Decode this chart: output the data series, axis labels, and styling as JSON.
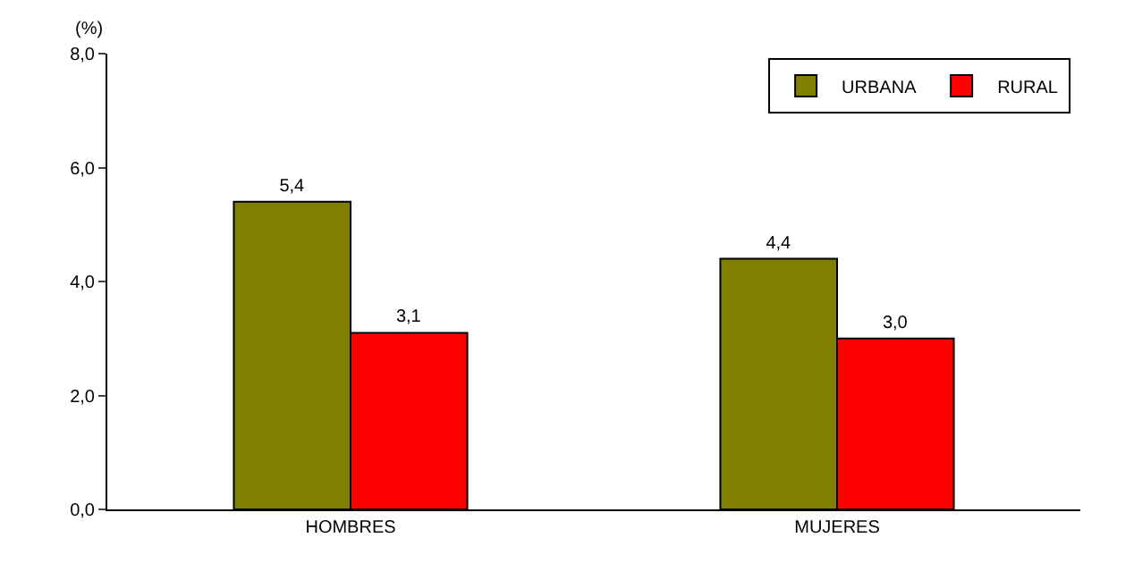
{
  "chart_data": {
    "type": "bar",
    "ylabel": "(%)",
    "categories": [
      "HOMBRES",
      "MUJERES"
    ],
    "series": [
      {
        "name": "URBANA",
        "color": "#808000",
        "values": [
          5.4,
          4.4
        ],
        "value_labels": [
          "5,4",
          "4,4"
        ]
      },
      {
        "name": "RURAL",
        "color": "#ff0000",
        "values": [
          3.1,
          3.0
        ],
        "value_labels": [
          "3,1",
          "3,0"
        ]
      }
    ],
    "ylim": [
      0,
      8
    ],
    "yticks": [
      {
        "value": 0,
        "label": "0,0"
      },
      {
        "value": 2,
        "label": "2,0"
      },
      {
        "value": 4,
        "label": "4,0"
      },
      {
        "value": 6,
        "label": "6,0"
      },
      {
        "value": 8,
        "label": "8,0"
      }
    ],
    "grid": false,
    "legend": "top right"
  }
}
